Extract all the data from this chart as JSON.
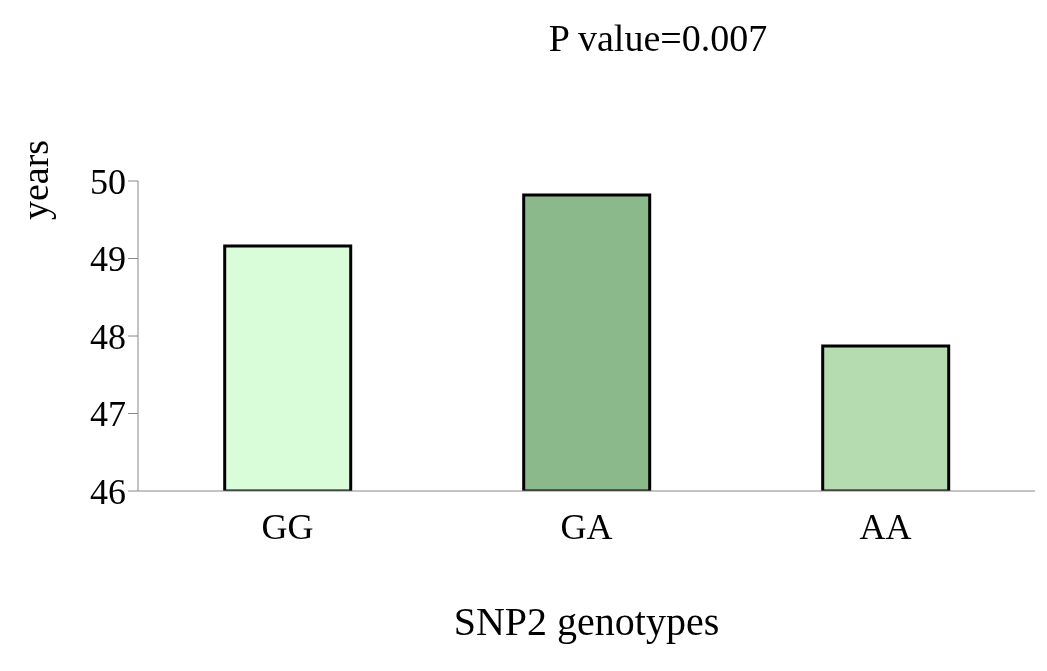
{
  "chart_data": {
    "type": "bar",
    "title": "P value=0.007",
    "xlabel": "SNP2 genotypes",
    "ylabel": "years",
    "categories": [
      "GG",
      "GA",
      "AA"
    ],
    "values": [
      49.16,
      49.82,
      47.87
    ],
    "colors": [
      "#d9fcd9",
      "#8cb98c",
      "#b5dbb0"
    ],
    "ylim": [
      46,
      50
    ],
    "yticks": [
      46,
      47,
      48,
      49,
      50
    ],
    "grid": false,
    "legend": false
  }
}
